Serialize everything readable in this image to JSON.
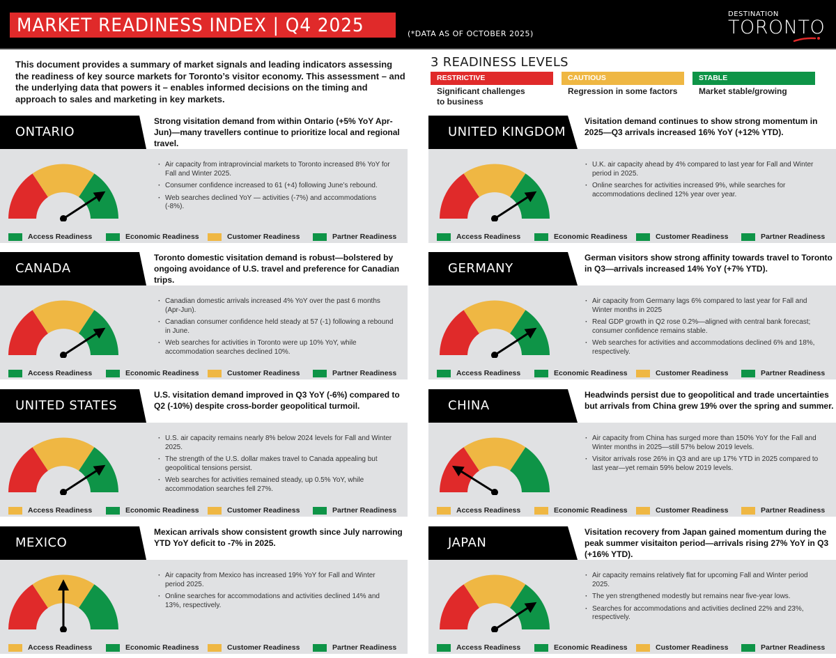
{
  "header": {
    "title": "MARKET READINESS INDEX | Q4 2025",
    "as_of": "(*DATA AS OF OCTOBER 2025)",
    "logo_top": "DESTINATION",
    "logo_main": "TORONTO"
  },
  "intro": "This document provides a summary of market signals and leading indicators assessing the readiness of key source markets for Toronto’s visitor economy. This assessment – and the underlying data that powers it – enables informed decisions on the timing and approach to sales and marketing in key markets.",
  "levels": {
    "title": "3 READINESS LEVELS",
    "items": [
      {
        "label": "RESTRICTIVE",
        "desc": "Significant challenges to business",
        "color": "#e02a2a"
      },
      {
        "label": "CAUTIOUS",
        "desc": "Regression in some factors",
        "color": "#efb743"
      },
      {
        "label": "STABLE",
        "desc": "Market stable/growing",
        "color": "#0e9447"
      }
    ]
  },
  "colors": {
    "red": "#e02a2a",
    "yellow": "#efb743",
    "green": "#0e9447",
    "panel": "#e0e1e3"
  },
  "legend_labels": [
    "Access Readiness",
    "Economic Readiness",
    "Customer Readiness",
    "Partner Readiness"
  ],
  "markets": [
    {
      "name": "ONTARIO",
      "headline": "Strong visitation demand from within Ontario (+5% YoY Apr-Jun)—many travellers continue to prioritize local and regional travel.",
      "gauge_level": "stable",
      "bullets": [
        "Air capacity from intraprovincial markets to Toronto increased 8% YoY for Fall and Winter 2025.",
        "Consumer confidence increased to 61 (+4) following June’s rebound.",
        "Web searches declined YoY — activities (-7%) and accommodations (-8%)."
      ],
      "readiness": [
        "stable",
        "stable",
        "cautious",
        "stable"
      ]
    },
    {
      "name": "UNITED KINGDOM",
      "headline": "Visitation demand continues to show strong momentum in 2025—Q3 arrivals increased 16% YoY (+12% YTD).",
      "gauge_level": "stable",
      "bullets": [
        "U.K. air capacity ahead by 4% compared to last year for Fall and Winter period in 2025.",
        "Online searches for activities increased 9%, while searches for accommodations declined 12% year over year."
      ],
      "readiness": [
        "stable",
        "stable",
        "stable",
        "stable"
      ]
    },
    {
      "name": "CANADA",
      "headline": "Toronto domestic visitation demand is robust—bolstered by ongoing avoidance of U.S. travel and preference for Canadian trips.",
      "gauge_level": "stable",
      "bullets": [
        "Canadian domestic arrivals increased 4% YoY over the past 6 months (Apr-Jun).",
        "Canadian consumer confidence held steady at 57 (-1) following a rebound in June.",
        "Web searches for activities in Toronto were up 10% YoY, while accommodation searches declined 10%."
      ],
      "readiness": [
        "stable",
        "stable",
        "cautious",
        "stable"
      ]
    },
    {
      "name": "GERMANY",
      "headline": "German visitors show strong affinity towards travel to Toronto in Q3—arrivals increased 14% YoY (+7% YTD).",
      "gauge_level": "stable",
      "bullets": [
        "Air capacity from Germany lags 6% compared to last year for Fall and Winter months in 2025",
        "Real GDP growth in Q2 rose 0.2%—aligned with central bank forecast; consumer confidence remains stable.",
        "Web searches for activities and accommodations declined 6% and 18%, respectively."
      ],
      "readiness": [
        "stable",
        "stable",
        "cautious",
        "stable"
      ]
    },
    {
      "name": "UNITED STATES",
      "headline": "U.S. visitation demand improved in Q3 YoY (-6%) compared to Q2 (-10%) despite cross-border geopolitical turmoil.",
      "gauge_level": "stable",
      "bullets": [
        "U.S. air capacity remains nearly 8% below 2024 levels for Fall and Winter 2025.",
        "The strength of the U.S. dollar makes travel to Canada appealing but geopolitical tensions persist.",
        "Web searches for activities remained steady, up 0.5% YoY, while accommodation searches fell 27%."
      ],
      "readiness": [
        "cautious",
        "stable",
        "cautious",
        "stable"
      ]
    },
    {
      "name": "CHINA",
      "headline": "Headwinds persist due to geopolitical and trade uncertainties but arrivals from China grew 19% over the spring and summer.",
      "gauge_level": "restrictive",
      "bullets": [
        "Air capacity from China has surged more than 150% YoY for the Fall and Winter months in 2025—still 57% below 2019 levels.",
        "Visitor arrivals rose 26% in Q3 and are up 17% YTD in 2025 compared to last year—yet remain 59% below 2019 levels."
      ],
      "readiness": [
        "cautious",
        "cautious",
        "cautious",
        "cautious"
      ]
    },
    {
      "name": "MEXICO",
      "headline": "Mexican arrivals show consistent growth since July narrowing YTD YoY deficit to -7% in 2025.",
      "gauge_level": "cautious",
      "bullets": [
        "Air capacity from Mexico has increased 19% YoY for Fall and Winter period 2025.",
        "Online searches for accommodations and activities declined 14% and 13%, respectively."
      ],
      "readiness": [
        "cautious",
        "stable",
        "cautious",
        "stable"
      ]
    },
    {
      "name": "JAPAN",
      "headline": "Visitation recovery from Japan gained momentum during the peak summer visitaiton period—arrivals rising 27% YoY in Q3 (+16% YTD).",
      "gauge_level": "stable",
      "bullets": [
        "Air capacity remains relatively flat for upcoming Fall and Winter period 2025.",
        "The yen strengthened modestly but remains near five-year lows.",
        "Searches for accommodations and activities declined 22% and 23%, respectively."
      ],
      "readiness": [
        "stable",
        "stable",
        "cautious",
        "stable"
      ]
    }
  ]
}
